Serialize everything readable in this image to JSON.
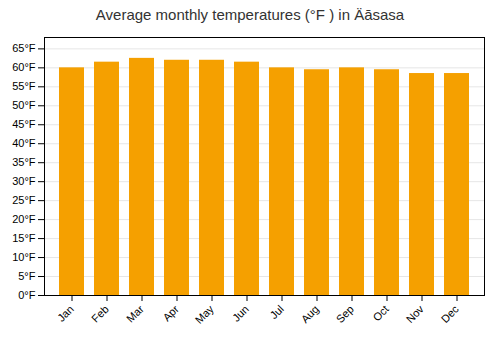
{
  "chart_data": {
    "type": "bar",
    "title": "Average monthly temperatures (°F ) in Äāsasa",
    "categories": [
      "Jan",
      "Feb",
      "Mar",
      "Apr",
      "May",
      "Jun",
      "Jul",
      "Aug",
      "Sep",
      "Oct",
      "Nov",
      "Dec"
    ],
    "values": [
      60,
      61.5,
      62.5,
      62,
      62,
      61.5,
      60,
      59.5,
      60,
      59.5,
      58.5,
      58.5
    ],
    "color": "#F5A000",
    "ylim": [
      0,
      68
    ],
    "yticks": [
      {
        "value": 0,
        "label": "0°F"
      },
      {
        "value": 5,
        "label": "5°F"
      },
      {
        "value": 10,
        "label": "10°F"
      },
      {
        "value": 15,
        "label": "15°F"
      },
      {
        "value": 20,
        "label": "20°F"
      },
      {
        "value": 25,
        "label": "25°F"
      },
      {
        "value": 30,
        "label": "30°F"
      },
      {
        "value": 35,
        "label": "35°F"
      },
      {
        "value": 40,
        "label": "40°F"
      },
      {
        "value": 45,
        "label": "45°F"
      },
      {
        "value": 50,
        "label": "50°F"
      },
      {
        "value": 55,
        "label": "55°F"
      },
      {
        "value": 60,
        "label": "60°F"
      },
      {
        "value": 65,
        "label": "65°F"
      }
    ],
    "grid": true
  }
}
